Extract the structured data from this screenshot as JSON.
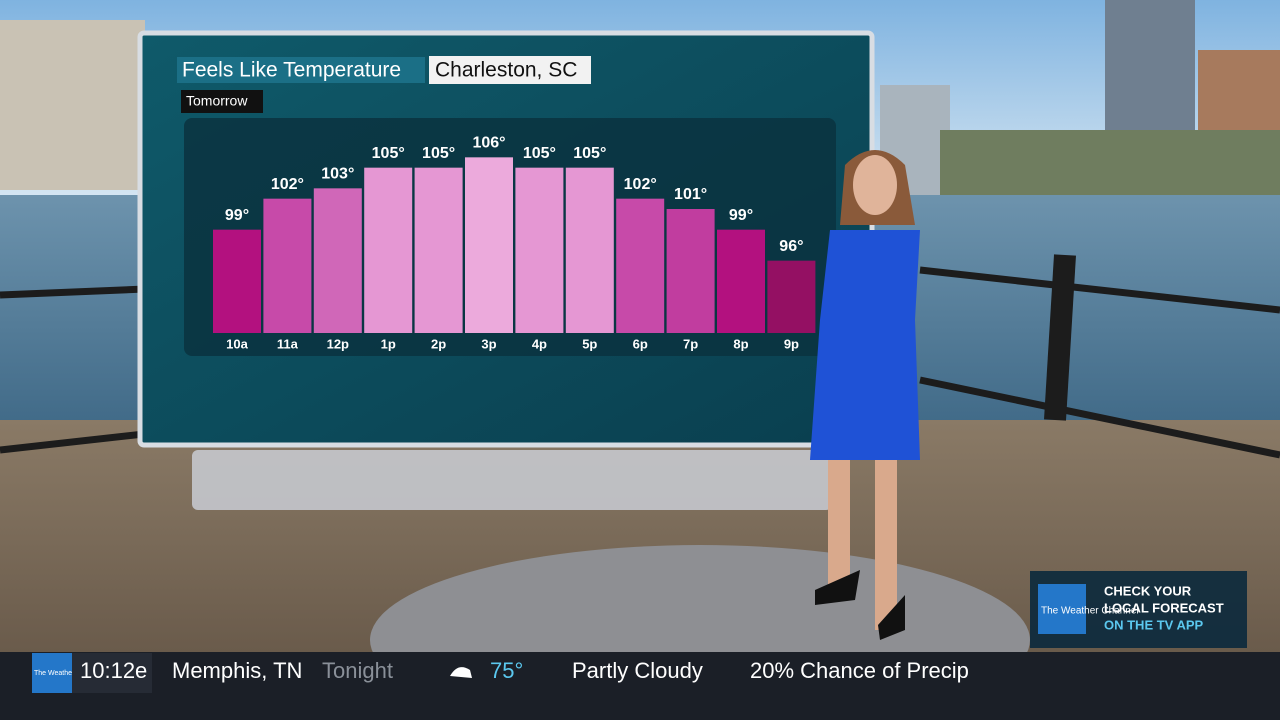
{
  "chart_data": {
    "type": "bar",
    "title": "Feels Like Temperature",
    "location": "Charleston, SC",
    "subtitle": "Tomorrow",
    "categories": [
      "10a",
      "11a",
      "12p",
      "1p",
      "2p",
      "3p",
      "4p",
      "5p",
      "6p",
      "7p",
      "8p",
      "9p"
    ],
    "values": [
      99,
      102,
      103,
      105,
      105,
      106,
      105,
      105,
      102,
      101,
      99,
      96
    ],
    "value_labels": [
      "99°",
      "102°",
      "103°",
      "105°",
      "105°",
      "106°",
      "105°",
      "105°",
      "102°",
      "101°",
      "99°",
      "96°"
    ],
    "colors": [
      "#b3117f",
      "#c74aa9",
      "#d067b8",
      "#e597d3",
      "#e597d3",
      "#ecaadc",
      "#e597d3",
      "#e597d3",
      "#c74aa9",
      "#c13d9f",
      "#b3117f",
      "#941063"
    ],
    "ylim": [
      89,
      107
    ]
  },
  "ticker": {
    "logo": "The Weather Channel",
    "time": "10:12e",
    "city": "Memphis, TN",
    "period": "Tonight",
    "temperature": "75°",
    "condition": "Partly Cloudy",
    "precip": "20% Chance of Precip"
  },
  "promo": {
    "logo": "The Weather Channel",
    "line1": "CHECK YOUR",
    "line2": "LOCAL FORECAST",
    "line3": "ON THE TV APP"
  }
}
